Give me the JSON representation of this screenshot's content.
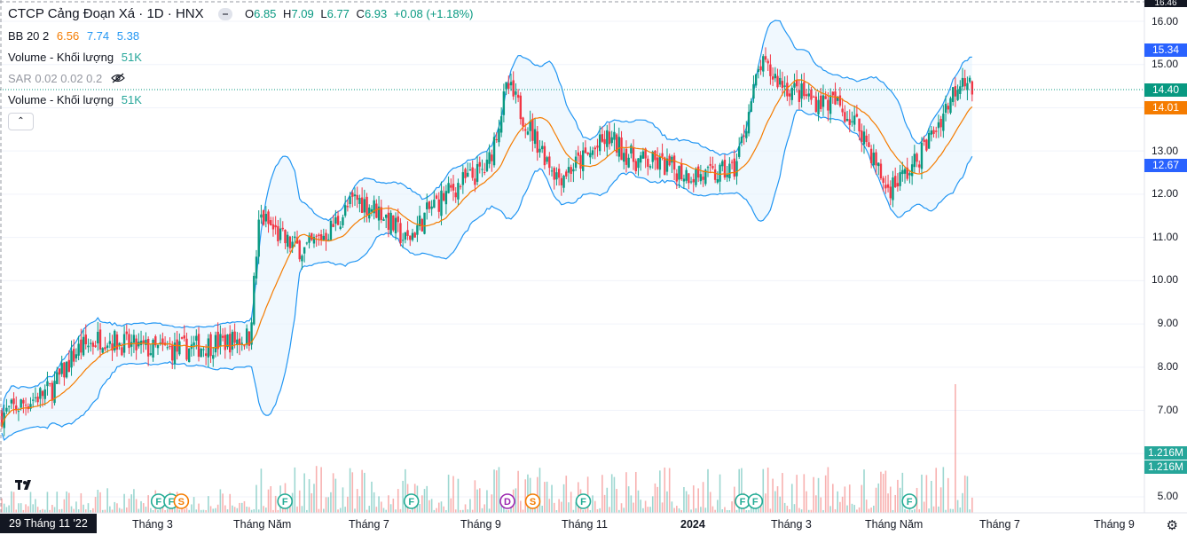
{
  "header": {
    "symbol_title": "CTCP Cảng Đoạn Xá · 1D · HNX",
    "ohlc": {
      "o_label": "O",
      "o": "6.85",
      "h_label": "H",
      "h": "7.09",
      "l_label": "L",
      "l": "6.77",
      "c_label": "C",
      "c": "6.93",
      "change": "+0.08 (+1.18%)"
    }
  },
  "indicators": {
    "bb": {
      "label": "BB 20 2",
      "basis": "6.56",
      "upper": "7.74",
      "lower": "5.38"
    },
    "volume1": {
      "label": "Volume - Khối lượng",
      "value": "51K"
    },
    "sar": {
      "label": "SAR 0.02 0.02 0.2"
    },
    "volume2": {
      "label": "Volume - Khối lượng",
      "value": "51K"
    }
  },
  "price_axis": {
    "top_value": "16.46",
    "ticks": [
      "16.00",
      "15.00",
      "13.00",
      "12.00",
      "11.00",
      "10.00",
      "9.00",
      "8.00",
      "7.00",
      "5.00"
    ],
    "tags": [
      {
        "value": "15.34",
        "color": "#2962ff"
      },
      {
        "value": "14.40",
        "color": "#089981"
      },
      {
        "value": "14.01",
        "color": "#f57c00"
      },
      {
        "value": "12.67",
        "color": "#2962ff"
      },
      {
        "value": "1.216M",
        "color": "#26a69a"
      },
      {
        "value": "1.216M",
        "color": "#26a69a"
      }
    ]
  },
  "time_axis": {
    "current_date": "29 Tháng 11 '22",
    "labels": [
      "Tháng 3",
      "Tháng Năm",
      "Tháng 7",
      "Tháng 9",
      "Tháng 11",
      "2024",
      "Tháng 3",
      "Tháng Năm",
      "Tháng 7",
      "Tháng 9"
    ]
  },
  "colors": {
    "up": "#089981",
    "down": "#f23645",
    "bb_band": "#2196f3",
    "bb_basis": "#f57c00",
    "bb_fill": "#e3f2fd"
  },
  "event_markers": [
    {
      "letter": "F",
      "x_month": 3.1,
      "color": "#22ab94"
    },
    {
      "letter": "F",
      "x_month": 3.35,
      "color": "#22ab94"
    },
    {
      "letter": "S",
      "x_month": 3.55,
      "color": "#f57c00"
    },
    {
      "letter": "F",
      "x_month": 5.6,
      "color": "#22ab94"
    },
    {
      "letter": "F",
      "x_month": 8.1,
      "color": "#22ab94"
    },
    {
      "letter": "D",
      "x_month": 10.0,
      "color": "#9c27b0"
    },
    {
      "letter": "S",
      "x_month": 10.5,
      "color": "#f57c00"
    },
    {
      "letter": "F",
      "x_month": 11.5,
      "color": "#22ab94"
    },
    {
      "letter": "F",
      "x_month": 14.65,
      "color": "#22ab94"
    },
    {
      "letter": "F",
      "x_month": 14.9,
      "color": "#22ab94"
    },
    {
      "letter": "F",
      "x_month": 17.95,
      "color": "#22ab94"
    }
  ],
  "chart_data": {
    "type": "candlestick",
    "x_unit": "months since Nov 2022",
    "ylim": [
      4.6,
      16.5
    ],
    "close_keypoints": [
      [
        0.0,
        6.9
      ],
      [
        0.5,
        7.2
      ],
      [
        1.0,
        7.5
      ],
      [
        1.5,
        8.4
      ],
      [
        2.0,
        8.7
      ],
      [
        2.5,
        8.5
      ],
      [
        3.0,
        8.4
      ],
      [
        3.5,
        8.4
      ],
      [
        4.0,
        8.5
      ],
      [
        4.5,
        8.6
      ],
      [
        4.9,
        8.7
      ],
      [
        5.1,
        11.5
      ],
      [
        5.6,
        10.9
      ],
      [
        6.0,
        10.7
      ],
      [
        6.5,
        11.2
      ],
      [
        7.0,
        11.9
      ],
      [
        7.5,
        11.6
      ],
      [
        8.0,
        10.9
      ],
      [
        8.5,
        11.7
      ],
      [
        9.0,
        12.2
      ],
      [
        9.6,
        12.6
      ],
      [
        10.0,
        14.5
      ],
      [
        10.5,
        13.4
      ],
      [
        11.0,
        12.4
      ],
      [
        11.5,
        12.8
      ],
      [
        12.0,
        13.3
      ],
      [
        12.5,
        12.8
      ],
      [
        13.0,
        12.7
      ],
      [
        13.5,
        12.5
      ],
      [
        14.0,
        12.4
      ],
      [
        14.5,
        12.6
      ],
      [
        15.0,
        15.0
      ],
      [
        15.5,
        14.5
      ],
      [
        16.0,
        14.2
      ],
      [
        16.5,
        14.1
      ],
      [
        17.0,
        13.5
      ],
      [
        17.5,
        12.1
      ],
      [
        18.0,
        12.6
      ],
      [
        18.5,
        13.6
      ],
      [
        19.0,
        14.8
      ],
      [
        19.2,
        14.4
      ]
    ],
    "volume_max": "1.216M"
  }
}
